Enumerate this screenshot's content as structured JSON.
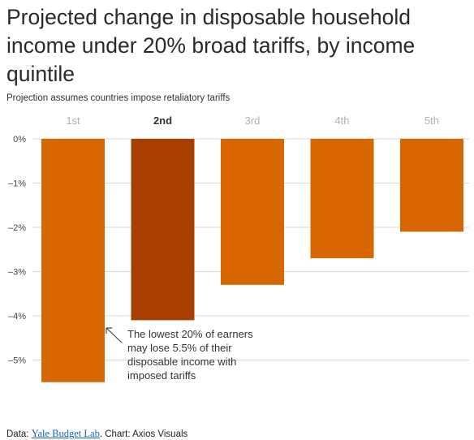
{
  "title": "Projected change in disposable household income under 20% broad tariffs, by income quintile",
  "subtitle": "Projection assumes countries impose retaliatory tariffs",
  "footer": {
    "prefix": "Data: ",
    "source": "Yale Budget Lab",
    "suffix": ". Chart: Axios Visuals"
  },
  "colors": {
    "bar": "#d86700",
    "highlight": "#a83f00",
    "grid": "#d9d9d9",
    "category_label": "#b0b0b0",
    "category_label_highlight": "#333333"
  },
  "chart_data": {
    "type": "bar",
    "categories": [
      "1st",
      "2nd",
      "3rd",
      "4th",
      "5th"
    ],
    "values": [
      -5.5,
      -4.1,
      -3.3,
      -2.7,
      -2.1
    ],
    "highlight_index": 1,
    "ylim": [
      -5.5,
      0
    ],
    "yticks": [
      0,
      -1,
      -2,
      -3,
      -4,
      -5
    ],
    "ytick_labels": [
      "0%",
      "–1%",
      "–2%",
      "–3%",
      "–4%",
      "–5%"
    ],
    "grid": true,
    "annotation": {
      "text": "The lowest 20% of earners may lose 5.5% of their disposable income with imposed tariffs",
      "lines": [
        "The lowest 20% of earners",
        "may lose 5.5% of their",
        "disposable income with",
        "imposed tariffs"
      ],
      "target_index": 0
    }
  }
}
